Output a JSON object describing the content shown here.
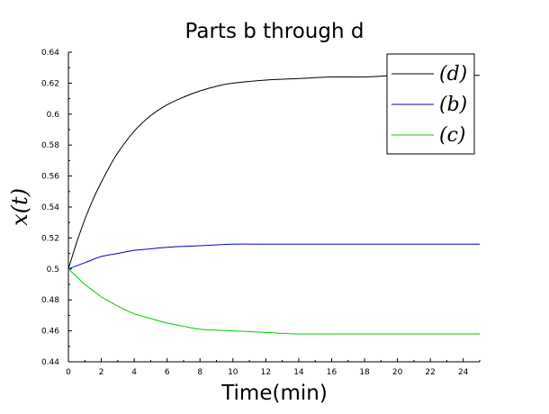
{
  "chart_data": {
    "type": "line",
    "title": "Parts b through d",
    "xlabel": "Time(min)",
    "ylabel": "x(t)",
    "xlim": [
      0,
      25
    ],
    "ylim": [
      0.44,
      0.64
    ],
    "xticks": [
      0,
      2,
      4,
      6,
      8,
      10,
      12,
      14,
      16,
      18,
      20,
      22,
      24
    ],
    "yticks": [
      0.44,
      0.46,
      0.48,
      0.5,
      0.52,
      0.54,
      0.56,
      0.58,
      0.6,
      0.62,
      0.64
    ],
    "grid": false,
    "legend_position": "top-right",
    "series": [
      {
        "name": "(d)",
        "color": "#000000",
        "x": [
          0,
          0.5,
          1,
          1.5,
          2,
          2.5,
          3,
          4,
          5,
          6,
          7,
          8,
          9,
          10,
          12,
          14,
          16,
          18,
          20,
          22,
          25
        ],
        "y": [
          0.5,
          0.517,
          0.532,
          0.545,
          0.556,
          0.566,
          0.575,
          0.589,
          0.599,
          0.606,
          0.611,
          0.615,
          0.618,
          0.62,
          0.622,
          0.623,
          0.624,
          0.624,
          0.625,
          0.625,
          0.625
        ]
      },
      {
        "name": "(b)",
        "color": "#0000cc",
        "x": [
          0,
          1,
          2,
          3,
          4,
          5,
          6,
          8,
          10,
          12,
          15,
          20,
          25
        ],
        "y": [
          0.5,
          0.504,
          0.508,
          0.51,
          0.512,
          0.513,
          0.514,
          0.515,
          0.516,
          0.516,
          0.516,
          0.516,
          0.516
        ]
      },
      {
        "name": "(c)",
        "color": "#00cc00",
        "x": [
          0,
          0.5,
          1,
          1.5,
          2,
          2.5,
          3,
          4,
          5,
          6,
          7,
          8,
          10,
          12,
          14,
          16,
          18,
          20,
          22,
          25
        ],
        "y": [
          0.5,
          0.495,
          0.49,
          0.486,
          0.482,
          0.479,
          0.476,
          0.471,
          0.468,
          0.465,
          0.463,
          0.461,
          0.46,
          0.459,
          0.458,
          0.458,
          0.458,
          0.458,
          0.458,
          0.458
        ]
      }
    ]
  }
}
